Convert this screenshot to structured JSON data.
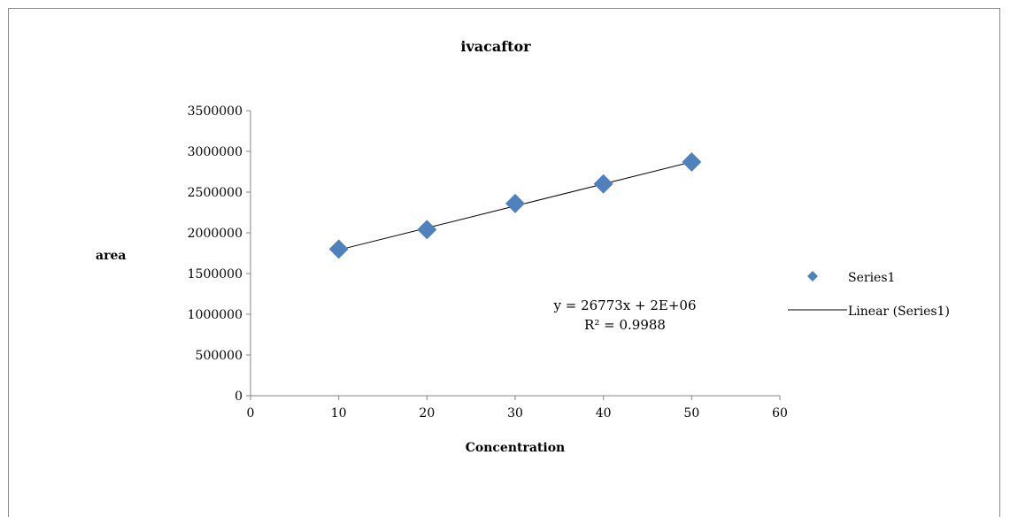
{
  "chart_data": {
    "type": "scatter",
    "title": "ivacaftor",
    "xlabel": "Concentration",
    "ylabel": "area",
    "xlim": [
      0,
      60
    ],
    "ylim": [
      0,
      3500000
    ],
    "x_ticks": [
      "0",
      "10",
      "20",
      "30",
      "40",
      "50",
      "60"
    ],
    "y_ticks": [
      "0",
      "500000",
      "1000000",
      "1500000",
      "2000000",
      "2500000",
      "3000000",
      "3500000"
    ],
    "grid": false,
    "legend_position": "right",
    "series": [
      {
        "name": "Series1",
        "color": "#4F81BD",
        "marker": "diamond",
        "x": [
          10,
          20,
          30,
          40,
          50
        ],
        "y": [
          1800000,
          2040000,
          2360000,
          2600000,
          2870000
        ]
      }
    ],
    "trendline": {
      "name": "Linear (Series1)",
      "color": "#000000",
      "x": [
        10,
        50
      ],
      "y": [
        1790000,
        2870000
      ]
    },
    "annotations": {
      "equation": "y = 26773x + 2E+06",
      "r_squared": "R² = 0.9988"
    }
  }
}
